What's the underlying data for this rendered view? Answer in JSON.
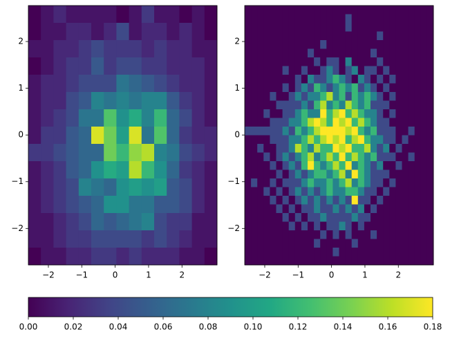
{
  "chart_data": [
    {
      "type": "heatmap",
      "colormap": "viridis",
      "xlim": [
        -2.6,
        3.05
      ],
      "ylim": [
        -2.78,
        2.77
      ],
      "xticks": [
        {
          "value": -2,
          "label": "−2"
        },
        {
          "value": -1,
          "label": "−1"
        },
        0,
        1,
        2
      ],
      "yticks": [
        {
          "value": -2,
          "label": "−2"
        },
        {
          "value": -1,
          "label": "−1"
        },
        0,
        1,
        2
      ],
      "values": [
        [
          0.0,
          0.01,
          0.02,
          0.01,
          0.01,
          0.01,
          0.01,
          0.0,
          0.01,
          0.03,
          0.01,
          0.01,
          0.0,
          0.01,
          0.0
        ],
        [
          0.0,
          0.01,
          0.01,
          0.02,
          0.02,
          0.01,
          0.02,
          0.04,
          0.01,
          0.02,
          0.02,
          0.01,
          0.02,
          0.01,
          0.0
        ],
        [
          0.01,
          0.01,
          0.02,
          0.02,
          0.03,
          0.04,
          0.03,
          0.03,
          0.03,
          0.02,
          0.03,
          0.02,
          0.02,
          0.01,
          0.01
        ],
        [
          0.0,
          0.01,
          0.02,
          0.03,
          0.03,
          0.05,
          0.03,
          0.04,
          0.04,
          0.03,
          0.03,
          0.02,
          0.02,
          0.02,
          0.01
        ],
        [
          0.01,
          0.02,
          0.02,
          0.03,
          0.04,
          0.04,
          0.04,
          0.07,
          0.06,
          0.05,
          0.04,
          0.03,
          0.02,
          0.02,
          0.01
        ],
        [
          0.01,
          0.02,
          0.02,
          0.04,
          0.05,
          0.08,
          0.07,
          0.08,
          0.07,
          0.08,
          0.08,
          0.05,
          0.03,
          0.02,
          0.01
        ],
        [
          0.01,
          0.02,
          0.03,
          0.04,
          0.07,
          0.07,
          0.13,
          0.09,
          0.11,
          0.08,
          0.12,
          0.06,
          0.04,
          0.02,
          0.01
        ],
        [
          0.01,
          0.03,
          0.03,
          0.05,
          0.06,
          0.17,
          0.14,
          0.1,
          0.17,
          0.07,
          0.13,
          0.06,
          0.03,
          0.02,
          0.02
        ],
        [
          0.03,
          0.03,
          0.04,
          0.05,
          0.06,
          0.06,
          0.14,
          0.12,
          0.15,
          0.16,
          0.08,
          0.07,
          0.04,
          0.03,
          0.02
        ],
        [
          0.01,
          0.02,
          0.03,
          0.05,
          0.06,
          0.09,
          0.11,
          0.1,
          0.16,
          0.12,
          0.09,
          0.06,
          0.03,
          0.02,
          0.01
        ],
        [
          0.01,
          0.02,
          0.03,
          0.04,
          0.08,
          0.07,
          0.06,
          0.09,
          0.1,
          0.09,
          0.1,
          0.05,
          0.04,
          0.02,
          0.01
        ],
        [
          0.01,
          0.02,
          0.03,
          0.04,
          0.05,
          0.06,
          0.09,
          0.09,
          0.07,
          0.07,
          0.05,
          0.05,
          0.04,
          0.02,
          0.01
        ],
        [
          0.01,
          0.01,
          0.02,
          0.03,
          0.04,
          0.06,
          0.05,
          0.06,
          0.07,
          0.08,
          0.04,
          0.03,
          0.03,
          0.01,
          0.01
        ],
        [
          0.01,
          0.01,
          0.02,
          0.03,
          0.03,
          0.04,
          0.04,
          0.04,
          0.04,
          0.03,
          0.04,
          0.03,
          0.02,
          0.01,
          0.01
        ],
        [
          0.0,
          0.01,
          0.01,
          0.02,
          0.02,
          0.03,
          0.03,
          0.02,
          0.03,
          0.02,
          0.02,
          0.02,
          0.01,
          0.01,
          0.0
        ]
      ]
    },
    {
      "type": "heatmap",
      "colormap": "viridis",
      "xlim": [
        -2.6,
        3.05
      ],
      "ylim": [
        -2.78,
        2.77
      ],
      "xticks": [
        {
          "value": -2,
          "label": "−2"
        },
        {
          "value": -1,
          "label": "−1"
        },
        0,
        1,
        2
      ],
      "yticks": [
        {
          "value": -2,
          "label": "−2"
        },
        {
          "value": -1,
          "label": "−1"
        },
        0,
        1,
        2
      ],
      "values": [
        [
          0,
          0,
          0,
          0,
          0,
          0,
          0,
          0,
          0,
          0,
          0,
          0,
          0,
          0,
          0,
          0,
          0,
          0,
          0,
          0,
          0,
          0,
          0,
          0,
          0,
          0,
          0,
          0,
          0,
          0
        ],
        [
          0,
          0,
          0,
          0,
          0,
          0,
          0,
          0,
          0,
          0,
          0,
          0,
          0,
          0,
          0,
          0,
          0.04,
          0,
          0,
          0,
          0,
          0,
          0,
          0,
          0,
          0,
          0,
          0,
          0,
          0
        ],
        [
          0,
          0,
          0,
          0,
          0,
          0,
          0,
          0,
          0,
          0,
          0,
          0,
          0,
          0,
          0,
          0,
          0.04,
          0,
          0,
          0,
          0,
          0,
          0,
          0,
          0,
          0,
          0,
          0,
          0,
          0
        ],
        [
          0,
          0,
          0,
          0,
          0,
          0,
          0,
          0,
          0,
          0,
          0,
          0,
          0,
          0,
          0,
          0,
          0,
          0,
          0,
          0,
          0,
          0.04,
          0,
          0,
          0,
          0,
          0,
          0,
          0,
          0
        ],
        [
          0,
          0,
          0,
          0,
          0,
          0,
          0,
          0,
          0,
          0,
          0,
          0,
          0.04,
          0,
          0,
          0,
          0,
          0,
          0,
          0,
          0,
          0,
          0,
          0,
          0,
          0,
          0,
          0,
          0,
          0
        ],
        [
          0,
          0,
          0,
          0,
          0,
          0,
          0,
          0,
          0,
          0,
          0.04,
          0,
          0,
          0,
          0,
          0,
          0,
          0,
          0,
          0,
          0.04,
          0,
          0,
          0,
          0,
          0,
          0,
          0,
          0,
          0
        ],
        [
          0,
          0,
          0,
          0,
          0,
          0,
          0,
          0,
          0,
          0,
          0,
          0.04,
          0,
          0.04,
          0.04,
          0,
          0.08,
          0,
          0,
          0,
          0,
          0.04,
          0,
          0,
          0,
          0,
          0,
          0,
          0,
          0
        ],
        [
          0,
          0,
          0,
          0,
          0,
          0,
          0.04,
          0,
          0,
          0.04,
          0,
          0,
          0.04,
          0.08,
          0.04,
          0,
          0.04,
          0.08,
          0,
          0.04,
          0.04,
          0,
          0.04,
          0,
          0,
          0,
          0,
          0,
          0,
          0
        ],
        [
          0,
          0,
          0,
          0,
          0,
          0,
          0,
          0,
          0.04,
          0,
          0.08,
          0.04,
          0.04,
          0.08,
          0.12,
          0.08,
          0.04,
          0,
          0.08,
          0.04,
          0,
          0.04,
          0,
          0.04,
          0,
          0,
          0,
          0,
          0,
          0
        ],
        [
          0,
          0,
          0,
          0,
          0,
          0,
          0.04,
          0,
          0.04,
          0.08,
          0.04,
          0.12,
          0.08,
          0.04,
          0.08,
          0.12,
          0.08,
          0.12,
          0.04,
          0.08,
          0.04,
          0,
          0.04,
          0,
          0,
          0,
          0,
          0,
          0,
          0
        ],
        [
          0,
          0,
          0,
          0,
          0.04,
          0,
          0,
          0.04,
          0.08,
          0.04,
          0.08,
          0.08,
          0.12,
          0.16,
          0.08,
          0.12,
          0.04,
          0.12,
          0.08,
          0.12,
          0.08,
          0.04,
          0,
          0.04,
          0,
          0,
          0,
          0,
          0,
          0
        ],
        [
          0,
          0,
          0,
          0,
          0,
          0.04,
          0.04,
          0.04,
          0.04,
          0.08,
          0.04,
          0.12,
          0.16,
          0.08,
          0.12,
          0.08,
          0.16,
          0.12,
          0.08,
          0.12,
          0.04,
          0.04,
          0.04,
          0,
          0,
          0,
          0,
          0,
          0,
          0
        ],
        [
          0,
          0,
          0,
          0.04,
          0,
          0,
          0.04,
          0.04,
          0.08,
          0.12,
          0.08,
          0.08,
          0.2,
          0.12,
          0.16,
          0.2,
          0.12,
          0.16,
          0.12,
          0.08,
          0.08,
          0.04,
          0,
          0.04,
          0,
          0,
          0,
          0,
          0,
          0
        ],
        [
          0,
          0,
          0,
          0,
          0.04,
          0.04,
          0.04,
          0.08,
          0.08,
          0.12,
          0.16,
          0.2,
          0.16,
          0.12,
          0.2,
          0.16,
          0.2,
          0.12,
          0.16,
          0.12,
          0.08,
          0.04,
          0.04,
          0,
          0,
          0,
          0,
          0,
          0,
          0
        ],
        [
          0.04,
          0.04,
          0.04,
          0.04,
          0.04,
          0.04,
          0.08,
          0.04,
          0.12,
          0.08,
          0.12,
          0.16,
          0.2,
          0.2,
          0.24,
          0.2,
          0.16,
          0.2,
          0.12,
          0.08,
          0.12,
          0.04,
          0.04,
          0.04,
          0,
          0,
          0.04,
          0,
          0,
          0
        ],
        [
          0,
          0,
          0,
          0,
          0.04,
          0.04,
          0.04,
          0.08,
          0.08,
          0.12,
          0.16,
          0.12,
          0.16,
          0.24,
          0.16,
          0.2,
          0.12,
          0.16,
          0.2,
          0.12,
          0.08,
          0.08,
          0.04,
          0.04,
          0,
          0.04,
          0,
          0,
          0,
          0
        ],
        [
          0,
          0,
          0.04,
          0,
          0,
          0.04,
          0.04,
          0.08,
          0.16,
          0.12,
          0.08,
          0.16,
          0.12,
          0.12,
          0.2,
          0.16,
          0.2,
          0.12,
          0.12,
          0.16,
          0.08,
          0.04,
          0.08,
          0,
          0.04,
          0,
          0,
          0,
          0,
          0
        ],
        [
          0,
          0,
          0,
          0.04,
          0,
          0.04,
          0.08,
          0.04,
          0.08,
          0.12,
          0.16,
          0.08,
          0.12,
          0.16,
          0.12,
          0.2,
          0.12,
          0.16,
          0.12,
          0.08,
          0.12,
          0.04,
          0.04,
          0.04,
          0,
          0,
          0.04,
          0,
          0,
          0
        ],
        [
          0,
          0,
          0,
          0,
          0.04,
          0,
          0.04,
          0.08,
          0.04,
          0.12,
          0.2,
          0.12,
          0.08,
          0.12,
          0.16,
          0.12,
          0.2,
          0.08,
          0.12,
          0.08,
          0.04,
          0.08,
          0,
          0,
          0.04,
          0,
          0,
          0,
          0,
          0
        ],
        [
          0,
          0,
          0,
          0,
          0,
          0.04,
          0,
          0.04,
          0.08,
          0.04,
          0.08,
          0.12,
          0.12,
          0.08,
          0.12,
          0.16,
          0.08,
          0.2,
          0.12,
          0.08,
          0.04,
          0.04,
          0.04,
          0,
          0,
          0,
          0,
          0,
          0,
          0
        ],
        [
          0,
          0.04,
          0,
          0,
          0.04,
          0,
          0.04,
          0.04,
          0.04,
          0.08,
          0.12,
          0.08,
          0.08,
          0.12,
          0.08,
          0.12,
          0.16,
          0.08,
          0.12,
          0.08,
          0.04,
          0.04,
          0,
          0.04,
          0,
          0,
          0,
          0,
          0,
          0
        ],
        [
          0,
          0,
          0,
          0.04,
          0,
          0.04,
          0,
          0.04,
          0.08,
          0.04,
          0.08,
          0.04,
          0.08,
          0.12,
          0.08,
          0.08,
          0.12,
          0.12,
          0.08,
          0.04,
          0.04,
          0,
          0.04,
          0,
          0,
          0,
          0,
          0,
          0,
          0
        ],
        [
          0,
          0,
          0,
          0,
          0.04,
          0,
          0.04,
          0,
          0.04,
          0.08,
          0.04,
          0.08,
          0.04,
          0.08,
          0.04,
          0.08,
          0.04,
          0.2,
          0.04,
          0.04,
          0,
          0.04,
          0,
          0,
          0,
          0,
          0,
          0,
          0,
          0
        ],
        [
          0,
          0,
          0,
          0,
          0,
          0.04,
          0,
          0.04,
          0,
          0.04,
          0.04,
          0.08,
          0.04,
          0.04,
          0.08,
          0.04,
          0.08,
          0.04,
          0.08,
          0,
          0.04,
          0,
          0,
          0,
          0,
          0,
          0,
          0,
          0,
          0
        ],
        [
          0,
          0,
          0,
          0,
          0,
          0,
          0.04,
          0,
          0.04,
          0,
          0.04,
          0.04,
          0.08,
          0.04,
          0.04,
          0.04,
          0.04,
          0.08,
          0.04,
          0.04,
          0,
          0,
          0,
          0,
          0,
          0,
          0,
          0,
          0,
          0
        ],
        [
          0,
          0,
          0,
          0,
          0,
          0,
          0,
          0.04,
          0,
          0.04,
          0,
          0.04,
          0,
          0.04,
          0.04,
          0.08,
          0.04,
          0,
          0.04,
          0,
          0,
          0,
          0,
          0,
          0,
          0,
          0,
          0,
          0,
          0
        ],
        [
          0,
          0,
          0,
          0,
          0,
          0,
          0,
          0,
          0,
          0,
          0,
          0,
          0.04,
          0,
          0.04,
          0,
          0.04,
          0,
          0,
          0,
          0.04,
          0,
          0,
          0,
          0,
          0,
          0,
          0,
          0,
          0
        ],
        [
          0,
          0,
          0,
          0,
          0,
          0,
          0,
          0,
          0,
          0,
          0,
          0.04,
          0,
          0,
          0,
          0,
          0,
          0.04,
          0,
          0,
          0,
          0,
          0,
          0,
          0,
          0,
          0,
          0,
          0,
          0
        ],
        [
          0,
          0,
          0,
          0,
          0,
          0,
          0,
          0,
          0,
          0,
          0,
          0,
          0,
          0,
          0.04,
          0,
          0,
          0,
          0,
          0,
          0,
          0,
          0,
          0,
          0,
          0,
          0,
          0,
          0,
          0
        ],
        [
          0,
          0,
          0,
          0,
          0,
          0,
          0,
          0,
          0,
          0,
          0,
          0,
          0,
          0,
          0,
          0,
          0,
          0,
          0,
          0,
          0,
          0,
          0,
          0,
          0,
          0,
          0,
          0,
          0,
          0
        ]
      ]
    }
  ],
  "colorbar": {
    "colormap": "viridis",
    "orientation": "horizontal",
    "lim": [
      0,
      0.18
    ],
    "ticks": [
      {
        "value": 0,
        "label": "0.00"
      },
      {
        "value": 0.02,
        "label": "0.02"
      },
      {
        "value": 0.04,
        "label": "0.04"
      },
      {
        "value": 0.06,
        "label": "0.06"
      },
      {
        "value": 0.08,
        "label": "0.08"
      },
      {
        "value": 0.1,
        "label": "0.10"
      },
      {
        "value": 0.12,
        "label": "0.12"
      },
      {
        "value": 0.14,
        "label": "0.14"
      },
      {
        "value": 0.16,
        "label": "0.16"
      },
      {
        "value": 0.18,
        "label": "0.18"
      }
    ]
  }
}
